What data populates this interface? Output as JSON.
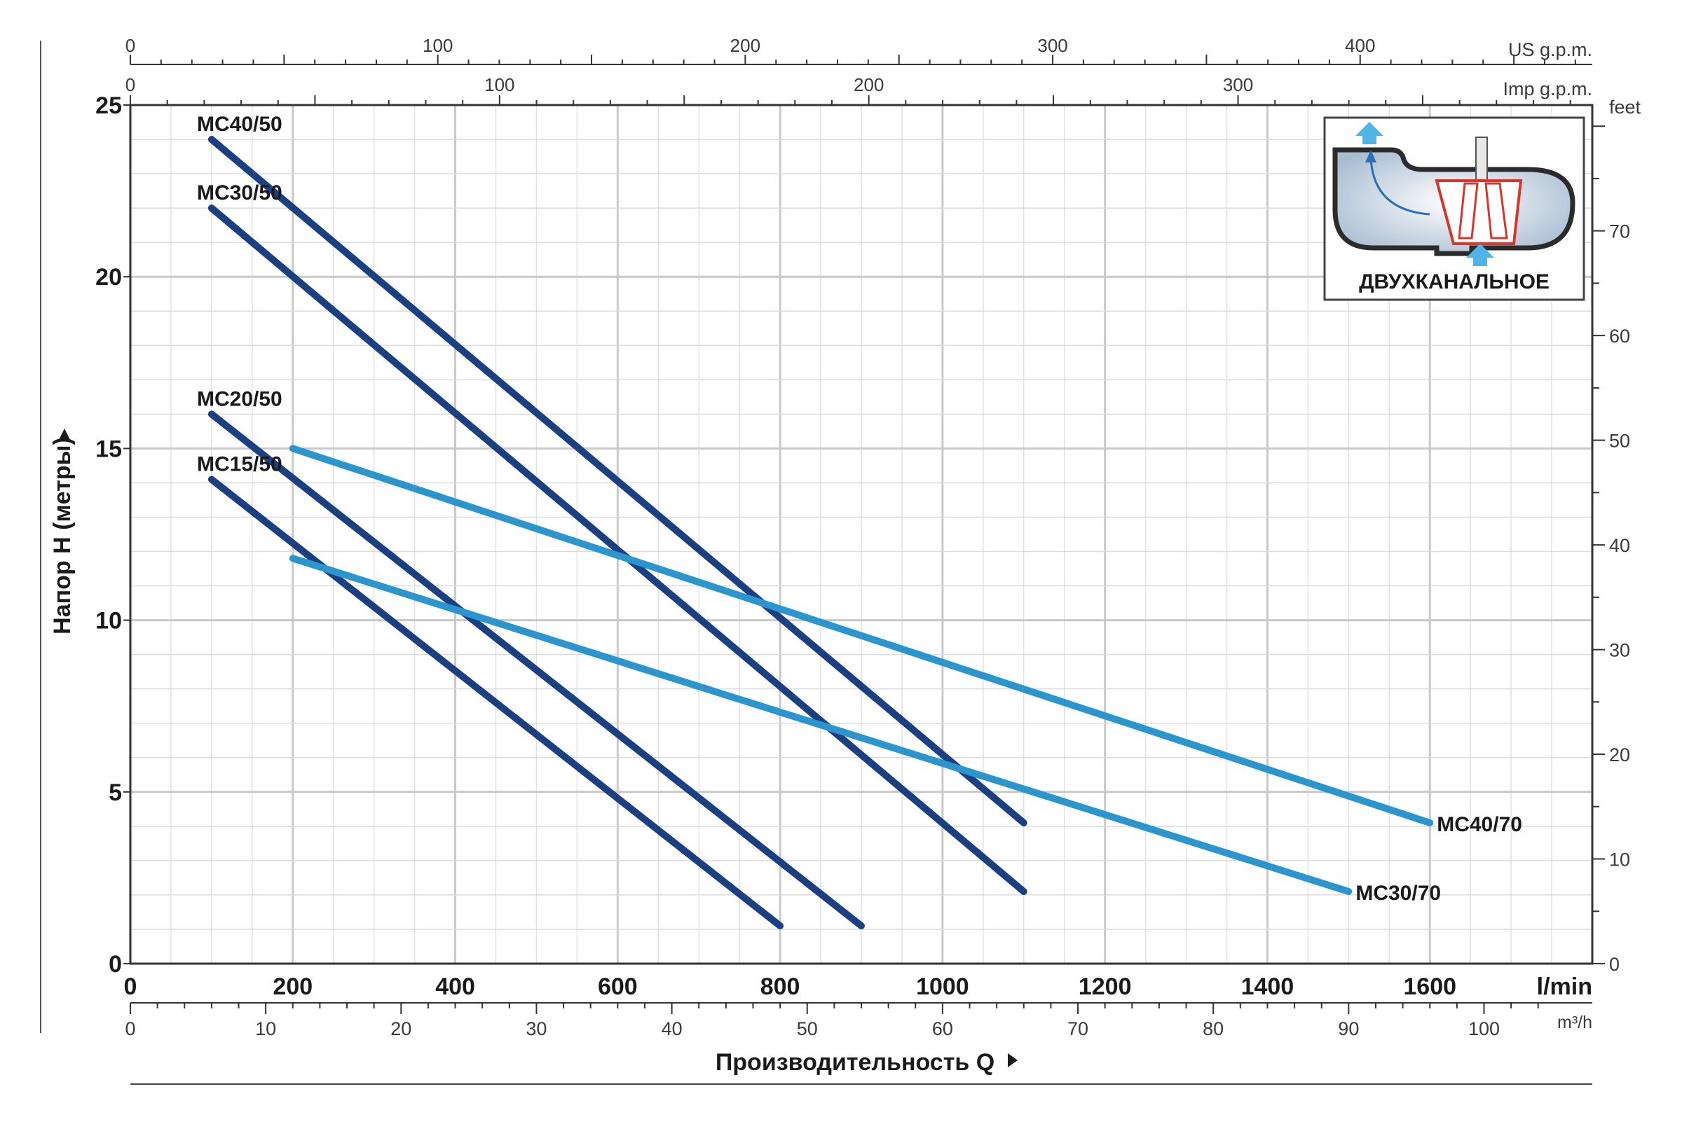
{
  "chart_data": {
    "type": "line",
    "ylabel": "Напор H (метры)",
    "xlabel": "Производительность Q",
    "x_unit": "l/min",
    "x_unit_m3h": "m³/h",
    "x_unit_us": "US g.p.m.",
    "x_unit_imp": "Imp g.p.m.",
    "y_unit_feet": "feet",
    "xlim": [
      0,
      1800
    ],
    "ylim": [
      0,
      25
    ],
    "grid": true,
    "x_ticks": [
      "0",
      "200",
      "400",
      "600",
      "800",
      "1000",
      "1200",
      "1400",
      "1600"
    ],
    "y_ticks": [
      "0",
      "5",
      "10",
      "15",
      "20",
      "25"
    ],
    "m3h_ticks": [
      "0",
      "10",
      "20",
      "30",
      "40",
      "50",
      "60",
      "70",
      "80",
      "90",
      "100"
    ],
    "us_gpm_ticks": [
      "0",
      "100",
      "200",
      "300",
      "400"
    ],
    "imp_gpm_ticks": [
      "0",
      "100",
      "200",
      "300"
    ],
    "feet_ticks": [
      "0",
      "10",
      "20",
      "30",
      "40",
      "50",
      "60",
      "70",
      "feet"
    ],
    "series": [
      {
        "name": "MC40/50",
        "color": "#1b3f83",
        "x": [
          100,
          1100
        ],
        "y": [
          24,
          4.1
        ]
      },
      {
        "name": "MC30/50",
        "color": "#1b3f83",
        "x": [
          100,
          1100
        ],
        "y": [
          22,
          2.1
        ]
      },
      {
        "name": "MC20/50",
        "color": "#1b3f83",
        "x": [
          100,
          900
        ],
        "y": [
          16,
          1.1
        ]
      },
      {
        "name": "MC15/50",
        "color": "#1b3f83",
        "x": [
          100,
          800
        ],
        "y": [
          14.1,
          1.1
        ]
      },
      {
        "name": "MC40/70",
        "color": "#2a95cf",
        "x": [
          200,
          1600
        ],
        "y": [
          15,
          4.1
        ]
      },
      {
        "name": "MC30/70",
        "color": "#2a95cf",
        "x": [
          200,
          1500
        ],
        "y": [
          11.8,
          2.1
        ]
      }
    ],
    "inset": {
      "label": "ДВУХКАНАЛЬНОЕ",
      "icon": "dual-channel-impeller-icon"
    }
  }
}
